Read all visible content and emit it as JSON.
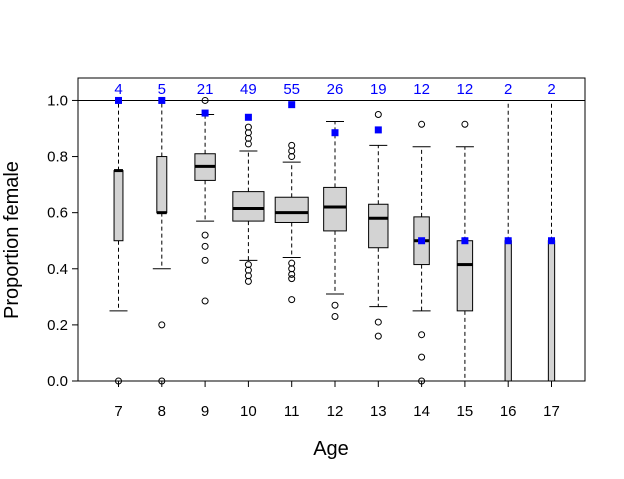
{
  "chart_data": {
    "type": "boxplot",
    "title": "",
    "xlabel": "Age",
    "ylabel": "Proportion female",
    "ylim": [
      0,
      1.08
    ],
    "y_ticks": [
      "0.0",
      "0.2",
      "0.4",
      "0.6",
      "0.8",
      "1.0"
    ],
    "categories": [
      "7",
      "8",
      "9",
      "10",
      "11",
      "12",
      "13",
      "14",
      "15",
      "16",
      "17"
    ],
    "sample_counts": [
      "4",
      "5",
      "21",
      "49",
      "55",
      "26",
      "19",
      "12",
      "12",
      "2",
      "2"
    ],
    "reference_line_y": 1.0,
    "box_fill": "#d3d3d3",
    "marker_color": "#0000ff",
    "count_color": "#0000ff",
    "boxes": [
      {
        "age": "7",
        "wlow": 0.25,
        "q1": 0.5,
        "median": 0.75,
        "q3": 0.75,
        "whigh": 1.0,
        "outliers": [
          0.0
        ]
      },
      {
        "age": "8",
        "wlow": 0.4,
        "q1": 0.6,
        "median": 0.6,
        "q3": 0.8,
        "whigh": 1.0,
        "outliers": [
          0.2,
          0.0
        ]
      },
      {
        "age": "9",
        "wlow": 0.57,
        "q1": 0.715,
        "median": 0.765,
        "q3": 0.81,
        "whigh": 0.95,
        "outliers": [
          1.0,
          0.52,
          0.48,
          0.43,
          0.285
        ]
      },
      {
        "age": "10",
        "wlow": 0.43,
        "q1": 0.57,
        "median": 0.615,
        "q3": 0.675,
        "whigh": 0.82,
        "outliers": [
          0.905,
          0.885,
          0.865,
          0.845,
          0.415,
          0.395,
          0.375,
          0.355
        ]
      },
      {
        "age": "11",
        "wlow": 0.44,
        "q1": 0.565,
        "median": 0.6,
        "q3": 0.655,
        "whigh": 0.78,
        "outliers": [
          0.84,
          0.82,
          0.8,
          0.42,
          0.4,
          0.38,
          0.365,
          0.29
        ]
      },
      {
        "age": "12",
        "wlow": 0.31,
        "q1": 0.535,
        "median": 0.62,
        "q3": 0.69,
        "whigh": 0.925,
        "outliers": [
          0.27,
          0.23
        ]
      },
      {
        "age": "13",
        "wlow": 0.265,
        "q1": 0.475,
        "median": 0.58,
        "q3": 0.63,
        "whigh": 0.84,
        "outliers": [
          0.95,
          0.21,
          0.16
        ]
      },
      {
        "age": "14",
        "wlow": 0.25,
        "q1": 0.415,
        "median": 0.5,
        "q3": 0.585,
        "whigh": 0.835,
        "outliers": [
          0.915,
          0.165,
          0.085,
          0.0
        ]
      },
      {
        "age": "15",
        "wlow": 0.0,
        "q1": 0.25,
        "median": 0.415,
        "q3": 0.5,
        "whigh": 0.835,
        "outliers": [
          0.915
        ]
      },
      {
        "age": "16",
        "wlow": 0.0,
        "q1": 0.0,
        "median": 0.5,
        "q3": 0.5,
        "whigh": 1.0,
        "outliers": []
      },
      {
        "age": "17",
        "wlow": 0.0,
        "q1": 0.0,
        "median": 0.5,
        "q3": 0.5,
        "whigh": 1.0,
        "outliers": []
      }
    ],
    "markers": [
      1.0,
      1.0,
      0.955,
      0.94,
      0.985,
      0.885,
      0.895,
      0.5,
      0.5,
      0.5,
      0.5
    ]
  }
}
